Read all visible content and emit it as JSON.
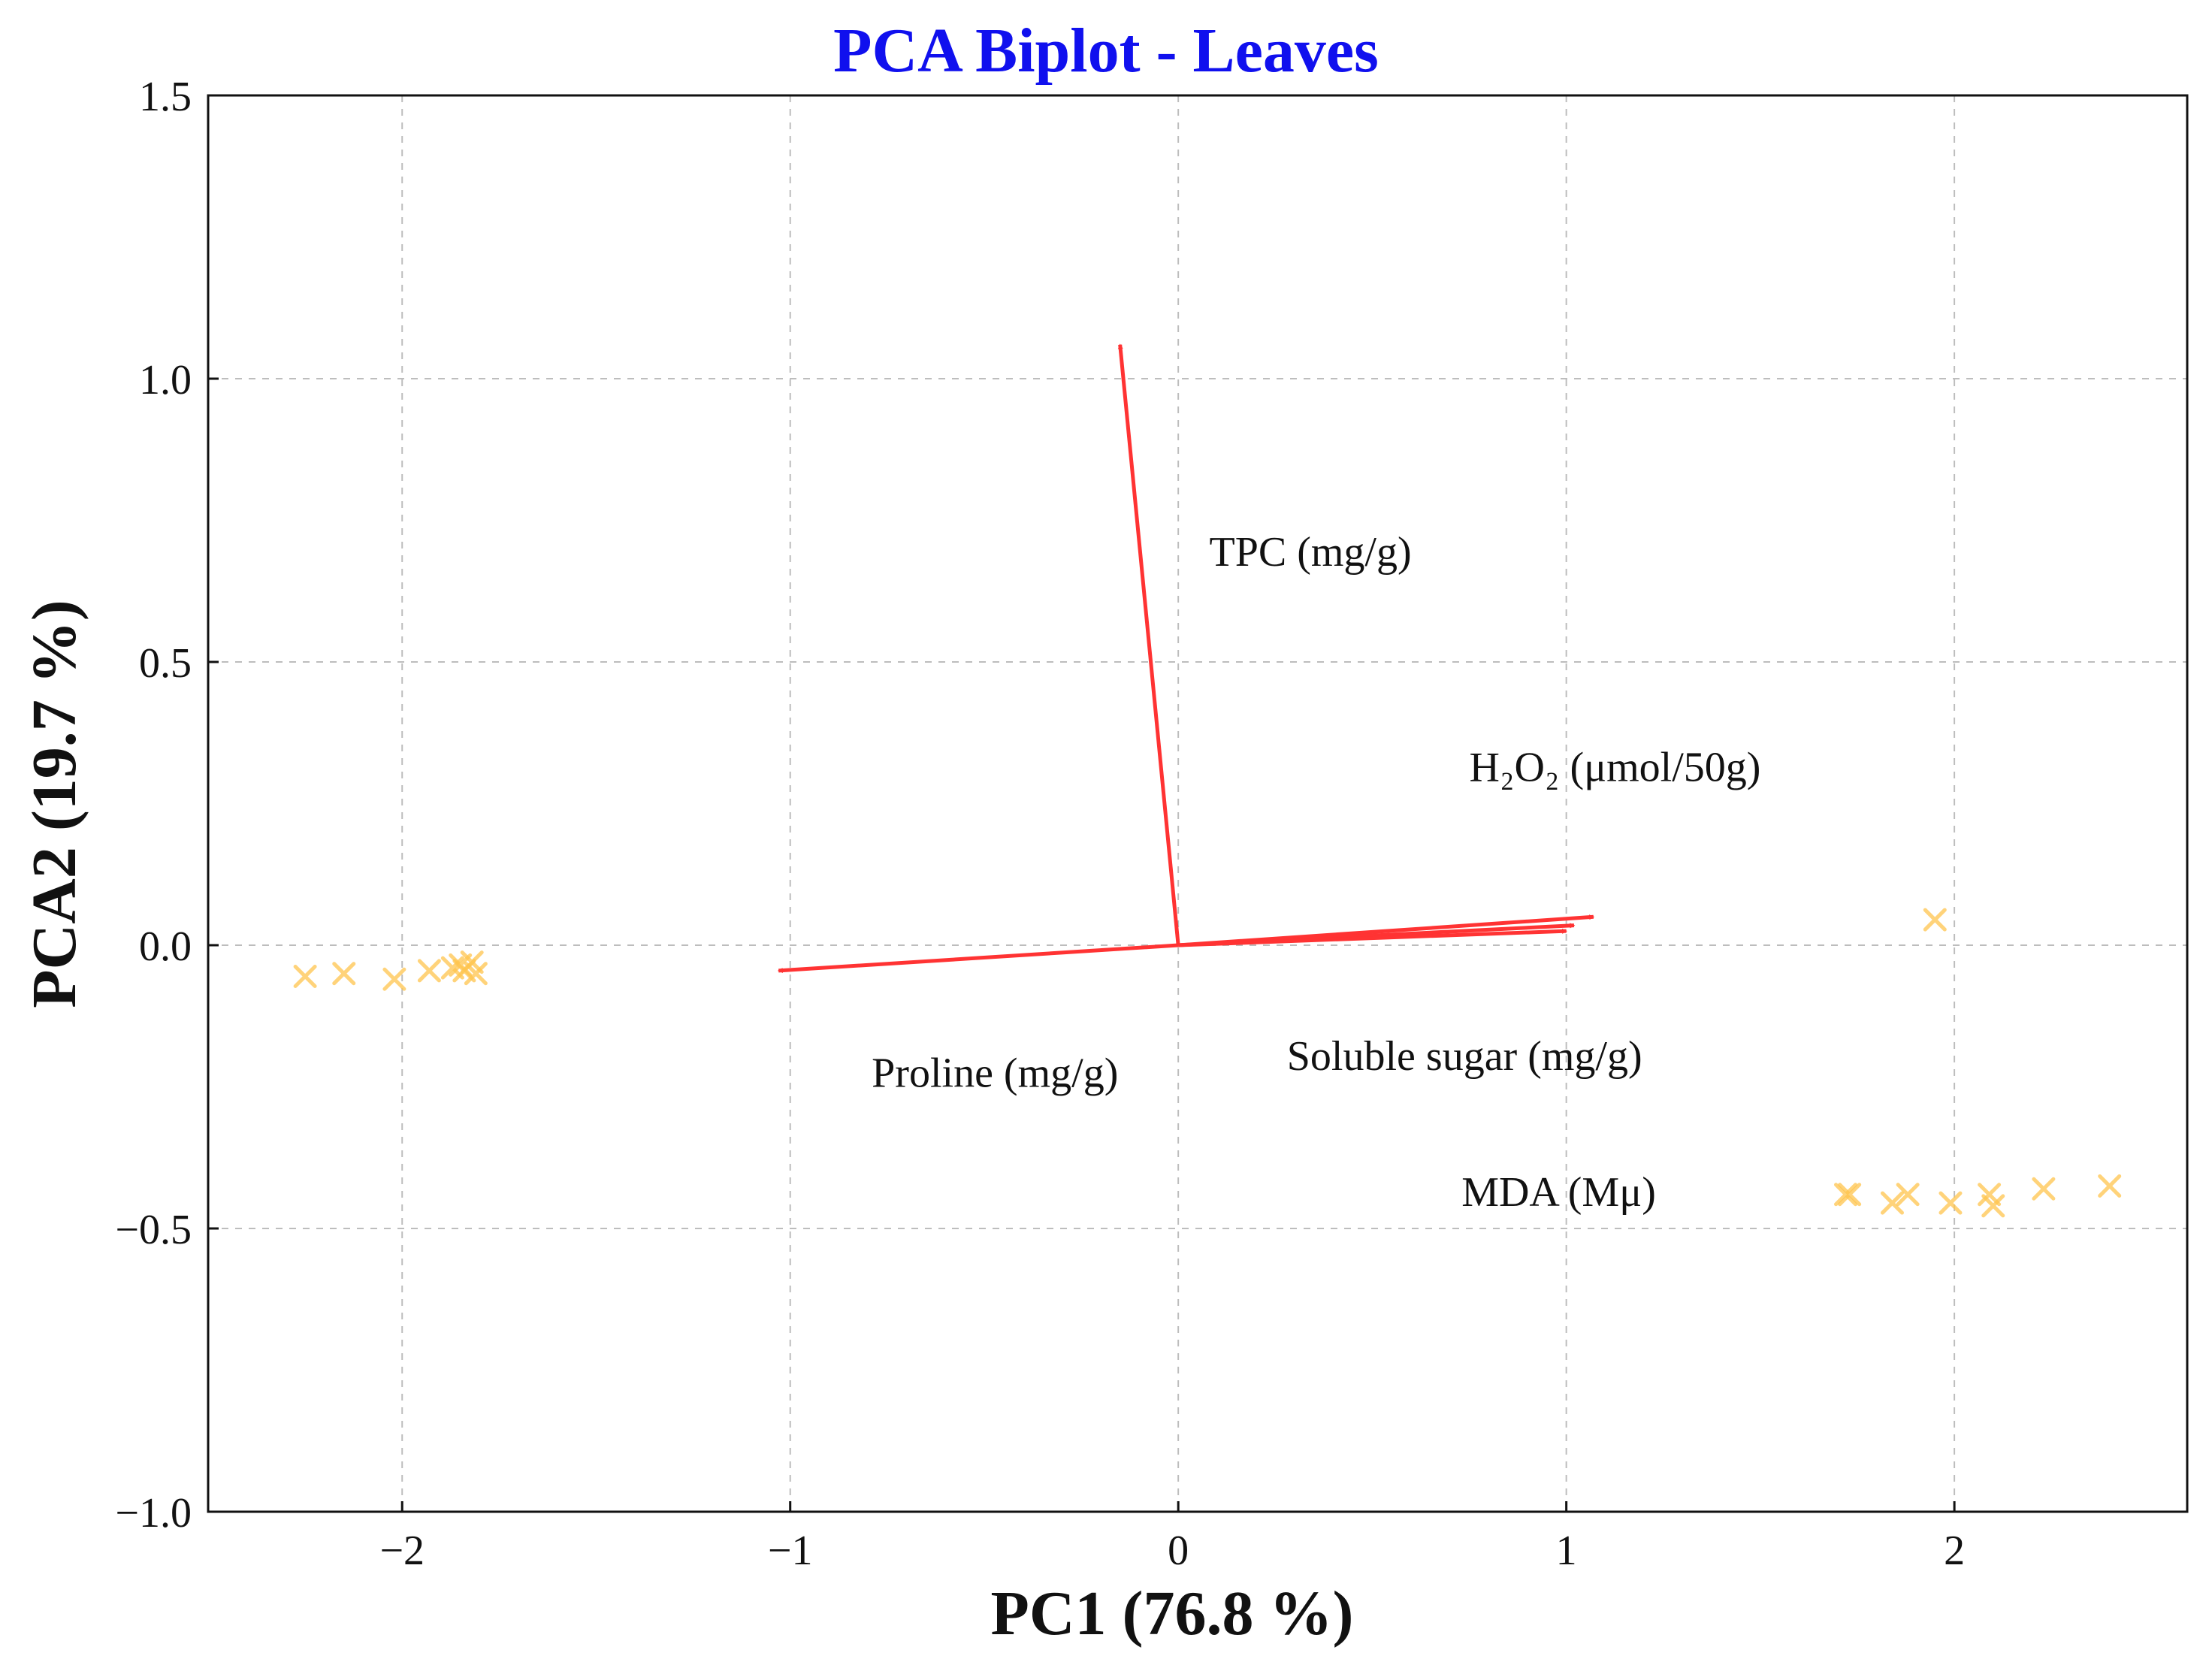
{
  "chart_data": {
    "type": "scatter",
    "title": "PCA Biplot - Leaves",
    "xlabel": "PC1 (76.8 %)",
    "ylabel": "PCA2 (19.7 %)",
    "xlim": [
      -2.5,
      2.6
    ],
    "ylim": [
      -1.0,
      1.5
    ],
    "grid": true,
    "x_ticks": [
      -2,
      -1,
      0,
      1,
      2
    ],
    "x_tick_labels": [
      "−2",
      "−1",
      "0",
      "1",
      "2"
    ],
    "y_ticks": [
      -1.0,
      -0.5,
      0.0,
      0.5,
      1.0,
      1.5
    ],
    "y_tick_labels": [
      "−1.0",
      "−0.5",
      "0.0",
      "0.5",
      "1.0",
      "1.5"
    ],
    "colors": {
      "title": "#1010ee",
      "vector": "#ff3333",
      "points": "#ffc44d"
    },
    "points": [
      {
        "x": -2.25,
        "y": -0.055
      },
      {
        "x": -2.15,
        "y": -0.05
      },
      {
        "x": -2.02,
        "y": -0.06
      },
      {
        "x": -1.93,
        "y": -0.045
      },
      {
        "x": -1.87,
        "y": -0.04
      },
      {
        "x": -1.85,
        "y": -0.035
      },
      {
        "x": -1.84,
        "y": -0.045
      },
      {
        "x": -1.82,
        "y": -0.03
      },
      {
        "x": -1.81,
        "y": -0.05
      },
      {
        "x": 1.95,
        "y": 0.045
      },
      {
        "x": 1.72,
        "y": -0.44
      },
      {
        "x": 1.73,
        "y": -0.44
      },
      {
        "x": 1.84,
        "y": -0.455
      },
      {
        "x": 1.88,
        "y": -0.44
      },
      {
        "x": 1.99,
        "y": -0.455
      },
      {
        "x": 2.09,
        "y": -0.44
      },
      {
        "x": 2.1,
        "y": -0.46
      },
      {
        "x": 2.23,
        "y": -0.43
      },
      {
        "x": 2.4,
        "y": -0.425
      }
    ],
    "vectors": [
      {
        "name": "TPC (mg/g)",
        "x": -0.15,
        "y": 1.06,
        "label_x": 0.08,
        "label_y": 0.67
      },
      {
        "name": "H₂O₂ (μmol/50g)",
        "x": 1.07,
        "y": 0.05,
        "label_x": 0.75,
        "label_y": 0.29
      },
      {
        "name": "Soluble sugar (mg/g)",
        "x": 1.02,
        "y": 0.035,
        "label_x": 0.28,
        "label_y": -0.22
      },
      {
        "name": "MDA (Mμ)",
        "x": 1.0,
        "y": 0.025,
        "label_x": 0.73,
        "label_y": -0.46
      },
      {
        "name": "Proline (mg/g)",
        "x": -1.03,
        "y": -0.045,
        "label_x": -0.79,
        "label_y": -0.25
      }
    ]
  }
}
